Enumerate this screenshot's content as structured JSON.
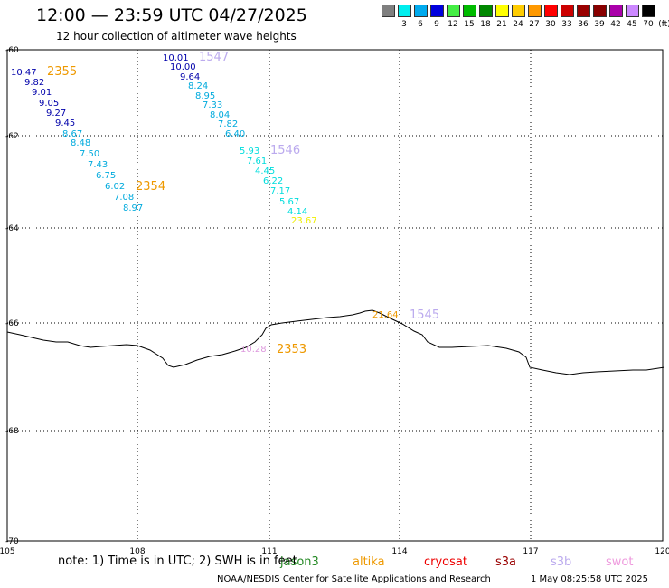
{
  "header": {
    "title": "12:00 — 23:59 UTC 04/27/2025",
    "subtitle": "12 hour collection of altimeter wave heights"
  },
  "legend": {
    "unit": "(ft)",
    "bins": [
      {
        "label": "",
        "color": "#7f7f7f"
      },
      {
        "label": "3",
        "color": "#00eeee"
      },
      {
        "label": "6",
        "color": "#00aaee"
      },
      {
        "label": "9",
        "color": "#0000dd"
      },
      {
        "label": "12",
        "color": "#44ee44"
      },
      {
        "label": "15",
        "color": "#00bb00"
      },
      {
        "label": "18",
        "color": "#008800"
      },
      {
        "label": "21",
        "color": "#ffff00"
      },
      {
        "label": "24",
        "color": "#ffcc00"
      },
      {
        "label": "27",
        "color": "#ff9900"
      },
      {
        "label": "30",
        "color": "#ff0000"
      },
      {
        "label": "33",
        "color": "#cc0000"
      },
      {
        "label": "36",
        "color": "#990000"
      },
      {
        "label": "39",
        "color": "#880000"
      },
      {
        "label": "42",
        "color": "#aa00aa"
      },
      {
        "label": "45",
        "color": "#cc88ff"
      },
      {
        "label": "70",
        "color": "#000000"
      }
    ]
  },
  "axes": {
    "lon_ticks": [
      105,
      108,
      111,
      114,
      117,
      120
    ],
    "lat_ticks": [
      -60,
      -62,
      -64,
      -66,
      -68,
      -70
    ]
  },
  "tracks": [
    {
      "pass_label": "2355",
      "pass_color": "#ee9900",
      "points": [
        {
          "v": "10.47",
          "color": "#0000aa"
        },
        {
          "v": "9.82",
          "color": "#0000aa"
        },
        {
          "v": "9.01",
          "color": "#0000aa"
        },
        {
          "v": "9.05",
          "color": "#0000aa"
        },
        {
          "v": "9.27",
          "color": "#0000aa"
        },
        {
          "v": "9.45",
          "color": "#0000aa"
        },
        {
          "v": "8.67",
          "color": "#00aadd"
        },
        {
          "v": "8.48",
          "color": "#00aadd"
        },
        {
          "v": "7.50",
          "color": "#00aadd"
        },
        {
          "v": "7.43",
          "color": "#00aadd"
        },
        {
          "v": "6.75",
          "color": "#00aadd"
        },
        {
          "v": "6.02",
          "color": "#00aadd"
        },
        {
          "v": "7.08",
          "color": "#00aadd"
        },
        {
          "v": "8.97",
          "color": "#00aadd"
        }
      ]
    },
    {
      "pass_label": "2354",
      "pass_color": "#ee9900",
      "points": []
    },
    {
      "pass_label": "1547",
      "pass_color": "#bbaaee",
      "points": [
        {
          "v": "10.01",
          "color": "#0000aa"
        },
        {
          "v": "10.00",
          "color": "#0000aa"
        },
        {
          "v": "9.64",
          "color": "#0000aa"
        },
        {
          "v": "8.24",
          "color": "#00aadd"
        },
        {
          "v": "8.95",
          "color": "#00aadd"
        },
        {
          "v": "7.33",
          "color": "#00aadd"
        },
        {
          "v": "8.04",
          "color": "#00aadd"
        },
        {
          "v": "7.82",
          "color": "#00aadd"
        },
        {
          "v": "6.40",
          "color": "#00aadd"
        }
      ]
    },
    {
      "pass_label": "1546",
      "pass_color": "#bbaaee",
      "points": [
        {
          "v": "5.93",
          "color": "#00dddd"
        },
        {
          "v": "7.61",
          "color": "#00dddd"
        },
        {
          "v": "4.45",
          "color": "#00dddd"
        },
        {
          "v": "6.22",
          "color": "#00dddd"
        },
        {
          "v": "7.17",
          "color": "#00dddd"
        },
        {
          "v": "5.67",
          "color": "#00dddd"
        },
        {
          "v": "4.14",
          "color": "#00dddd"
        },
        {
          "v": "23.67",
          "color": "#eeee00"
        }
      ]
    },
    {
      "pass_label": "1545",
      "pass_color": "#bbaaee",
      "points": [
        {
          "v": "21.64",
          "color": "#ee9900"
        }
      ]
    },
    {
      "pass_label": "2353",
      "pass_color": "#ee9900",
      "points": [
        {
          "v": "10.28",
          "color": "#dd99dd"
        }
      ]
    }
  ],
  "sources": {
    "prefix": "note: 1) Time is in UTC; 2) SWH is in feet",
    "items": [
      {
        "name": "jason3",
        "color": "#228822"
      },
      {
        "name": "altika",
        "color": "#ee9900"
      },
      {
        "name": "cryosat",
        "color": "#ee0000"
      },
      {
        "name": "s3a",
        "color": "#990000"
      },
      {
        "name": "s3b",
        "color": "#bbaaee"
      },
      {
        "name": "swot",
        "color": "#ee99dd"
      }
    ]
  },
  "footer": {
    "left": "NOAA/NESDIS Center for Satellite Applications and Research",
    "right": "1 May 08:25:58 UTC 2025"
  }
}
